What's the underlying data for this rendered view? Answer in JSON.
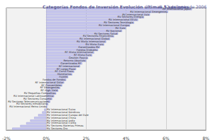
{
  "chart_data": {
    "type": "bar",
    "orientation": "horizontal",
    "title": "Categorías Fondos de Inversión Evolución últimas 5 sesiones",
    "subtitle": "© 12 de junio de 2006",
    "categories": [
      "RV Internacional Japón",
      "RV Internacional Emergentes",
      "RV Internacional Asia",
      "RV Sectores Energía",
      "RV Internacional EEUU",
      "RV Sectores Tecnología",
      "RV Internacional Europa",
      "RV Euro",
      "RV Nacional",
      "RV Sectores Salud",
      "RV Sectores Financieros",
      "RV Internacional Global",
      "RV Mixta Internacional",
      "RV Mixta Euro",
      "Garantizados RV",
      "Fondos Globales",
      "RF Mixta Internacional",
      "RF Mixta Euro",
      "Gestión Pasiva",
      "Retorno Absoluto",
      "Garantizados RF",
      "RF Internacional",
      "RF Largo Plazo",
      "RF Corto Plazo",
      "Monetarios",
      "FIAMM",
      "Fondos de Fondos",
      "RF Internacional Dólar",
      "RF Convertibles",
      "RF Emergentes",
      "RF High Yield",
      "RV Pequeñas Compañías",
      "RV Internacional Latinoamérica",
      "RV Sectores Consumo",
      "RV Sectores Telecomunicaciones",
      "RV Sectores Inmobiliario",
      "RV Internacional Reino Unido",
      "RV Internacional Suiza",
      "RV Internacional Nórdicos",
      "RV Internacional Europa del Este",
      "RV Internacional China",
      "RV Internacional India",
      "RV Internacional Corea",
      "RV Sectores Materias Primas",
      "RV Sectores Oro"
    ],
    "values": [
      7.3,
      6.1,
      5.2,
      4.9,
      4.6,
      4.4,
      4.2,
      4.0,
      3.8,
      3.6,
      3.4,
      3.2,
      3.0,
      2.9,
      2.7,
      2.6,
      2.4,
      2.3,
      2.1,
      2.0,
      1.8,
      1.7,
      1.5,
      1.4,
      1.3,
      1.1,
      1.0,
      0.9,
      0.8,
      0.7,
      0.6,
      0.5,
      0.4,
      0.3,
      0.2,
      0.1,
      0.05,
      -0.1,
      -0.2,
      -0.4,
      -0.6,
      -0.8,
      -1.0,
      -1.3,
      -1.7
    ],
    "color": "#c8c8f0",
    "xlim": [
      -2,
      8
    ],
    "xticks": [
      {
        "value": -2,
        "label": "-2%"
      },
      {
        "value": 0,
        "label": "0%"
      },
      {
        "value": 2,
        "label": "2%"
      },
      {
        "value": 4,
        "label": "4%"
      },
      {
        "value": 6,
        "label": "6%"
      },
      {
        "value": 8,
        "label": "8%"
      }
    ],
    "grid": true,
    "tick_labels": "x"
  }
}
